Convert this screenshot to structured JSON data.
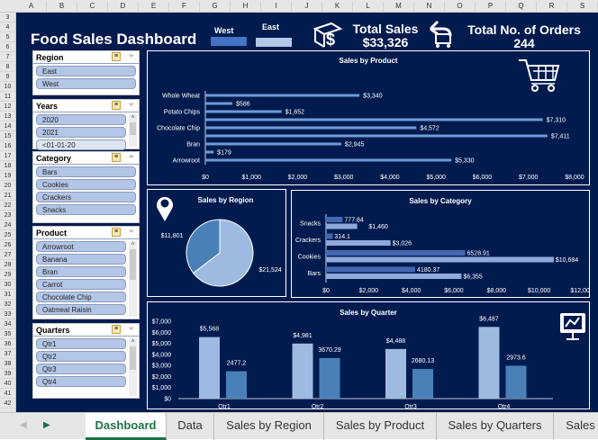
{
  "columns": [
    "A",
    "B",
    "C",
    "D",
    "E",
    "F",
    "G",
    "H",
    "I",
    "J",
    "K",
    "L",
    "M",
    "N",
    "O",
    "P",
    "Q",
    "R",
    "S"
  ],
  "rows": [
    "3",
    "4",
    "5",
    "6",
    "7",
    "8",
    "9",
    "10",
    "11",
    "12",
    "13",
    "14",
    "15",
    "16",
    "17",
    "18",
    "19",
    "20",
    "21",
    "22",
    "23",
    "24",
    "25",
    "26",
    "27",
    "28",
    "29",
    "30",
    "31",
    "32",
    "33",
    "34",
    "35",
    "36",
    "37",
    "38",
    "39",
    "40",
    "41",
    "42"
  ],
  "header": {
    "title": "Food Sales Dashboard",
    "legend": [
      {
        "label": "West",
        "color": "#4472c4"
      },
      {
        "label": "East",
        "color": "#b4c7e7"
      }
    ],
    "total_sales_label": "Total Sales",
    "total_sales_value": "$33,326",
    "orders_label": "Total No. of Orders",
    "orders_value": "244"
  },
  "slicers": [
    {
      "title": "Region",
      "items": [
        "East",
        "West"
      ]
    },
    {
      "title": "Years",
      "items": [
        "2020",
        "2021",
        "<01-01-20"
      ]
    },
    {
      "title": "Category",
      "items": [
        "Bars",
        "Cookies",
        "Crackers",
        "Snacks"
      ]
    },
    {
      "title": "Product",
      "items": [
        "Arrowroot",
        "Banana",
        "Bran",
        "Carrot",
        "Chocolate Chip",
        "Oatmeal Raisin"
      ]
    },
    {
      "title": "Quarters",
      "items": [
        "Qtr1",
        "Qtr2",
        "Qtr3",
        "Qtr4"
      ]
    }
  ],
  "chart_data": [
    {
      "type": "bar",
      "orientation": "horizontal",
      "title": "Sales by Product",
      "categories": [
        "Whole Wheat",
        "",
        "Potato Chips",
        "",
        "Chocolate Chip",
        "",
        "Bran",
        "",
        "Arrowroot"
      ],
      "values": [
        3340,
        586,
        1652,
        7310,
        4572,
        7411,
        2945,
        179,
        5330
      ],
      "labels": [
        "$3,340",
        "$586",
        "$1,652",
        "$7,310",
        "$4,572",
        "$7,411",
        "$2,945",
        "$179",
        "$5,330"
      ],
      "xlim": [
        0,
        8000
      ],
      "ticks": [
        "$0",
        "$1,000",
        "$2,000",
        "$3,000",
        "$4,000",
        "$5,000",
        "$6,000",
        "$7,000",
        "$8,000"
      ],
      "color": "#6f9bd6"
    },
    {
      "type": "pie",
      "title": "Sales by Region",
      "series": [
        {
          "name": "East",
          "value": 21524,
          "label": "$21,524",
          "color": "#9dbbe0"
        },
        {
          "name": "West",
          "value": 11801,
          "label": "$11,801",
          "color": "#4a7fb8"
        }
      ]
    },
    {
      "type": "bar",
      "orientation": "horizontal",
      "title": "Sales by Category",
      "categories": [
        "Snacks",
        "Crackers",
        "Cookies",
        "Bars"
      ],
      "series": [
        {
          "name": "West",
          "values": [
            777.84,
            314.1,
            6528.91,
            4180.37
          ],
          "labels": [
            "777.84",
            "314.1",
            "6528.91",
            "4180.37"
          ],
          "color": "#4468b0"
        },
        {
          "name": "East",
          "values": [
            1460,
            3026,
            10684,
            6355
          ],
          "labels": [
            "$1,460",
            "$3,026",
            "$10,684",
            "$6,355"
          ],
          "color": "#8fa9dc"
        }
      ],
      "xlim": [
        0,
        12000
      ],
      "ticks": [
        "$0",
        "$2,000",
        "$4,000",
        "$6,000",
        "$8,000",
        "$10,000",
        "$12,000"
      ]
    },
    {
      "type": "bar",
      "title": "Sales by Quarter",
      "categories": [
        "Qtr1",
        "Qtr2",
        "Qtr3",
        "Qtr4"
      ],
      "series": [
        {
          "name": "East",
          "values": [
            5568,
            4981,
            4488,
            6487
          ],
          "labels": [
            "$5,568",
            "$4,981",
            "$4,488",
            "$6,487"
          ],
          "color": "#9dbbe0"
        },
        {
          "name": "West",
          "values": [
            2477.2,
            3670.29,
            2680.13,
            2973.6
          ],
          "labels": [
            "2477.2",
            "3670.29",
            "2680.13",
            "2973.6"
          ],
          "color": "#4a80b8"
        }
      ],
      "ylim": [
        0,
        7000
      ],
      "ticks": [
        "$0",
        "$1,000",
        "$2,000",
        "$3,000",
        "$4,000",
        "$5,000",
        "$6,000",
        "$7,000"
      ]
    }
  ],
  "tabs": [
    "Dashboard",
    "Data",
    "Sales by Region",
    "Sales by Product",
    "Sales by Quarters",
    "Sales"
  ]
}
